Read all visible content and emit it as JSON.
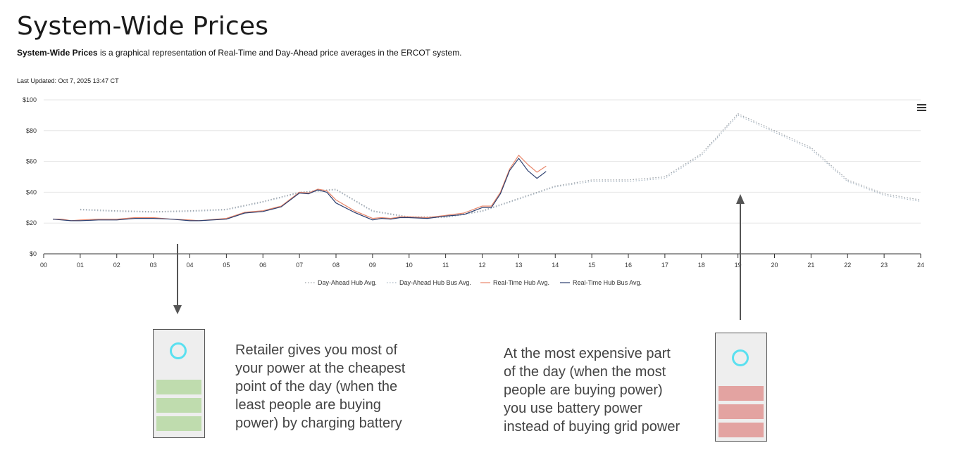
{
  "page": {
    "title": "System-Wide Prices",
    "description_bold": "System-Wide Prices",
    "description_rest": " is a graphical representation of Real-Time and Day-Ahead price averages in the ERCOT system.",
    "last_updated": "Last Updated: Oct 7, 2025 13:47 CT"
  },
  "chart_data": {
    "type": "line",
    "x_ticks": [
      "00",
      "01",
      "02",
      "03",
      "04",
      "05",
      "06",
      "07",
      "08",
      "09",
      "10",
      "11",
      "12",
      "13",
      "14",
      "15",
      "16",
      "17",
      "18",
      "19",
      "20",
      "21",
      "22",
      "23",
      "24"
    ],
    "xlim": [
      0,
      24
    ],
    "y_ticks": [
      "$0",
      "$20",
      "$40",
      "$60",
      "$80",
      "$100"
    ],
    "ylim": [
      0,
      100
    ],
    "grid": "horizontal",
    "legend_position": "bottom-center",
    "series": [
      {
        "name": "Day-Ahead Hub Avg.",
        "color": "#9aa0a6",
        "style": "dotted",
        "points": [
          [
            1,
            29
          ],
          [
            2,
            28
          ],
          [
            3,
            27.5
          ],
          [
            4,
            28
          ],
          [
            5,
            29
          ],
          [
            6,
            34
          ],
          [
            7,
            40
          ],
          [
            8,
            42
          ],
          [
            9,
            28
          ],
          [
            10,
            24
          ],
          [
            11,
            24
          ],
          [
            12,
            28
          ],
          [
            13,
            36
          ],
          [
            14,
            44
          ],
          [
            15,
            48
          ],
          [
            16,
            48
          ],
          [
            17,
            50
          ],
          [
            18,
            65
          ],
          [
            19,
            91
          ],
          [
            20,
            80
          ],
          [
            21,
            69
          ],
          [
            22,
            48
          ],
          [
            23,
            39
          ],
          [
            24,
            35
          ]
        ]
      },
      {
        "name": "Day-Ahead Hub Bus Avg.",
        "color": "#a9b7c4",
        "style": "dotted",
        "points": [
          [
            1,
            28.5
          ],
          [
            2,
            27.5
          ],
          [
            3,
            27
          ],
          [
            4,
            27.5
          ],
          [
            5,
            28.5
          ],
          [
            6,
            33.5
          ],
          [
            7,
            39.5
          ],
          [
            8,
            41.5
          ],
          [
            9,
            27.5
          ],
          [
            10,
            23.5
          ],
          [
            11,
            23.5
          ],
          [
            12,
            27.5
          ],
          [
            13,
            35.5
          ],
          [
            14,
            43.5
          ],
          [
            15,
            47
          ],
          [
            16,
            47
          ],
          [
            17,
            49
          ],
          [
            18,
            64
          ],
          [
            19,
            90
          ],
          [
            20,
            79
          ],
          [
            21,
            68
          ],
          [
            22,
            47
          ],
          [
            23,
            38
          ],
          [
            24,
            34
          ]
        ]
      },
      {
        "name": "Real-Time Hub Avg.",
        "color": "#e8866a",
        "style": "solid",
        "points": [
          [
            0.25,
            22.5
          ],
          [
            0.5,
            22.5
          ],
          [
            0.75,
            21.5
          ],
          [
            1,
            22
          ],
          [
            1.5,
            22.5
          ],
          [
            2,
            22.5
          ],
          [
            2.5,
            23.5
          ],
          [
            3,
            23.5
          ],
          [
            3.5,
            22.5
          ],
          [
            4,
            22
          ],
          [
            4.25,
            21.5
          ],
          [
            5,
            23
          ],
          [
            5.5,
            27
          ],
          [
            6,
            28
          ],
          [
            6.5,
            31
          ],
          [
            7,
            40
          ],
          [
            7.25,
            39.5
          ],
          [
            7.5,
            42
          ],
          [
            7.75,
            41
          ],
          [
            8,
            35
          ],
          [
            8.5,
            28
          ],
          [
            9,
            23
          ],
          [
            9.25,
            23.5
          ],
          [
            9.5,
            23
          ],
          [
            9.75,
            24
          ],
          [
            10,
            24
          ],
          [
            10.5,
            23.5
          ],
          [
            11,
            25
          ],
          [
            11.5,
            26.5
          ],
          [
            12,
            31
          ],
          [
            12.25,
            31
          ],
          [
            12.5,
            40
          ],
          [
            12.75,
            55
          ],
          [
            13,
            64
          ],
          [
            13.25,
            58
          ],
          [
            13.5,
            53
          ],
          [
            13.75,
            57
          ]
        ]
      },
      {
        "name": "Real-Time Hub Bus Avg.",
        "color": "#2c3e6e",
        "style": "solid",
        "points": [
          [
            0.25,
            22.5
          ],
          [
            0.5,
            22
          ],
          [
            0.75,
            21.5
          ],
          [
            1,
            21.5
          ],
          [
            1.5,
            22
          ],
          [
            2,
            22
          ],
          [
            2.5,
            23
          ],
          [
            3,
            23
          ],
          [
            3.5,
            22.5
          ],
          [
            4,
            21.5
          ],
          [
            4.25,
            21.5
          ],
          [
            5,
            22.5
          ],
          [
            5.5,
            26.5
          ],
          [
            6,
            27.5
          ],
          [
            6.5,
            30.5
          ],
          [
            7,
            39.5
          ],
          [
            7.25,
            39
          ],
          [
            7.5,
            41.5
          ],
          [
            7.75,
            40
          ],
          [
            8,
            33
          ],
          [
            8.5,
            27
          ],
          [
            9,
            22
          ],
          [
            9.25,
            23
          ],
          [
            9.5,
            22.5
          ],
          [
            9.75,
            23.5
          ],
          [
            10,
            23.5
          ],
          [
            10.5,
            23
          ],
          [
            11,
            24.5
          ],
          [
            11.5,
            25.5
          ],
          [
            12,
            30
          ],
          [
            12.25,
            30
          ],
          [
            12.5,
            39
          ],
          [
            12.75,
            54
          ],
          [
            13,
            62
          ],
          [
            13.25,
            54
          ],
          [
            13.5,
            49
          ],
          [
            13.75,
            53.5
          ]
        ]
      }
    ]
  },
  "annotations": {
    "left_note": [
      "Retailer gives you most of",
      "your power at the cheapest",
      "point of the day (when the",
      "least people are buying",
      "power) by charging battery"
    ],
    "right_note": [
      "At the most expensive part",
      "of the day (when the most",
      "people are buying power)",
      "you use battery power",
      "instead of buying grid power"
    ],
    "left_arrow_hour": 3.65,
    "right_arrow_hour": 19,
    "left_battery_color": "#bfdcae",
    "right_battery_color": "#e3a3a1",
    "ring_color": "#5ae0f0"
  },
  "menu": {
    "icon": "hamburger-menu-icon"
  }
}
